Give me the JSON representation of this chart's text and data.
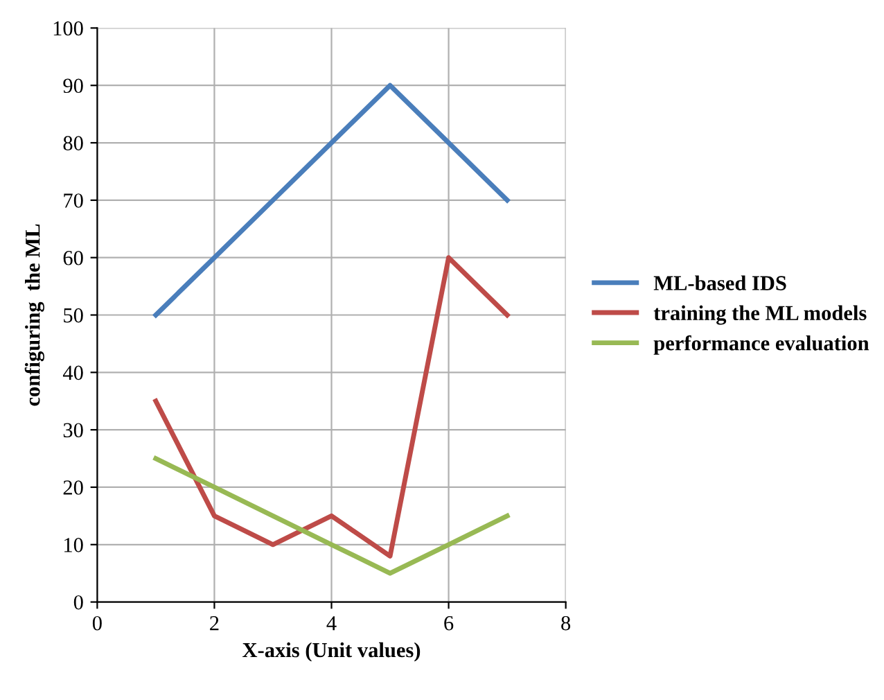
{
  "chart_data": {
    "type": "line",
    "xlabel": "X-axis (Unit values)",
    "ylabel": "configuring  the ML",
    "x": [
      1,
      2,
      3,
      4,
      5,
      6,
      7
    ],
    "series": [
      {
        "name": "ML-based IDS",
        "color": "#4a7ebb",
        "values": [
          50,
          60,
          70,
          80,
          90,
          80,
          70
        ]
      },
      {
        "name": "training the ML models",
        "color": "#be4b48",
        "values": [
          35,
          15,
          10,
          15,
          8,
          60,
          50
        ]
      },
      {
        "name": "performance evaluation",
        "color": "#98b954",
        "values": [
          25,
          20,
          15,
          10,
          5,
          10,
          15
        ]
      }
    ],
    "xlim": [
      0,
      8
    ],
    "xticks": [
      0,
      2,
      4,
      6,
      8
    ],
    "ylim": [
      0,
      100
    ],
    "yticks": [
      0,
      10,
      20,
      30,
      40,
      50,
      60,
      70,
      80,
      90,
      100
    ],
    "grid": true,
    "legend": "right",
    "marker": "none",
    "line_style": "solid"
  }
}
